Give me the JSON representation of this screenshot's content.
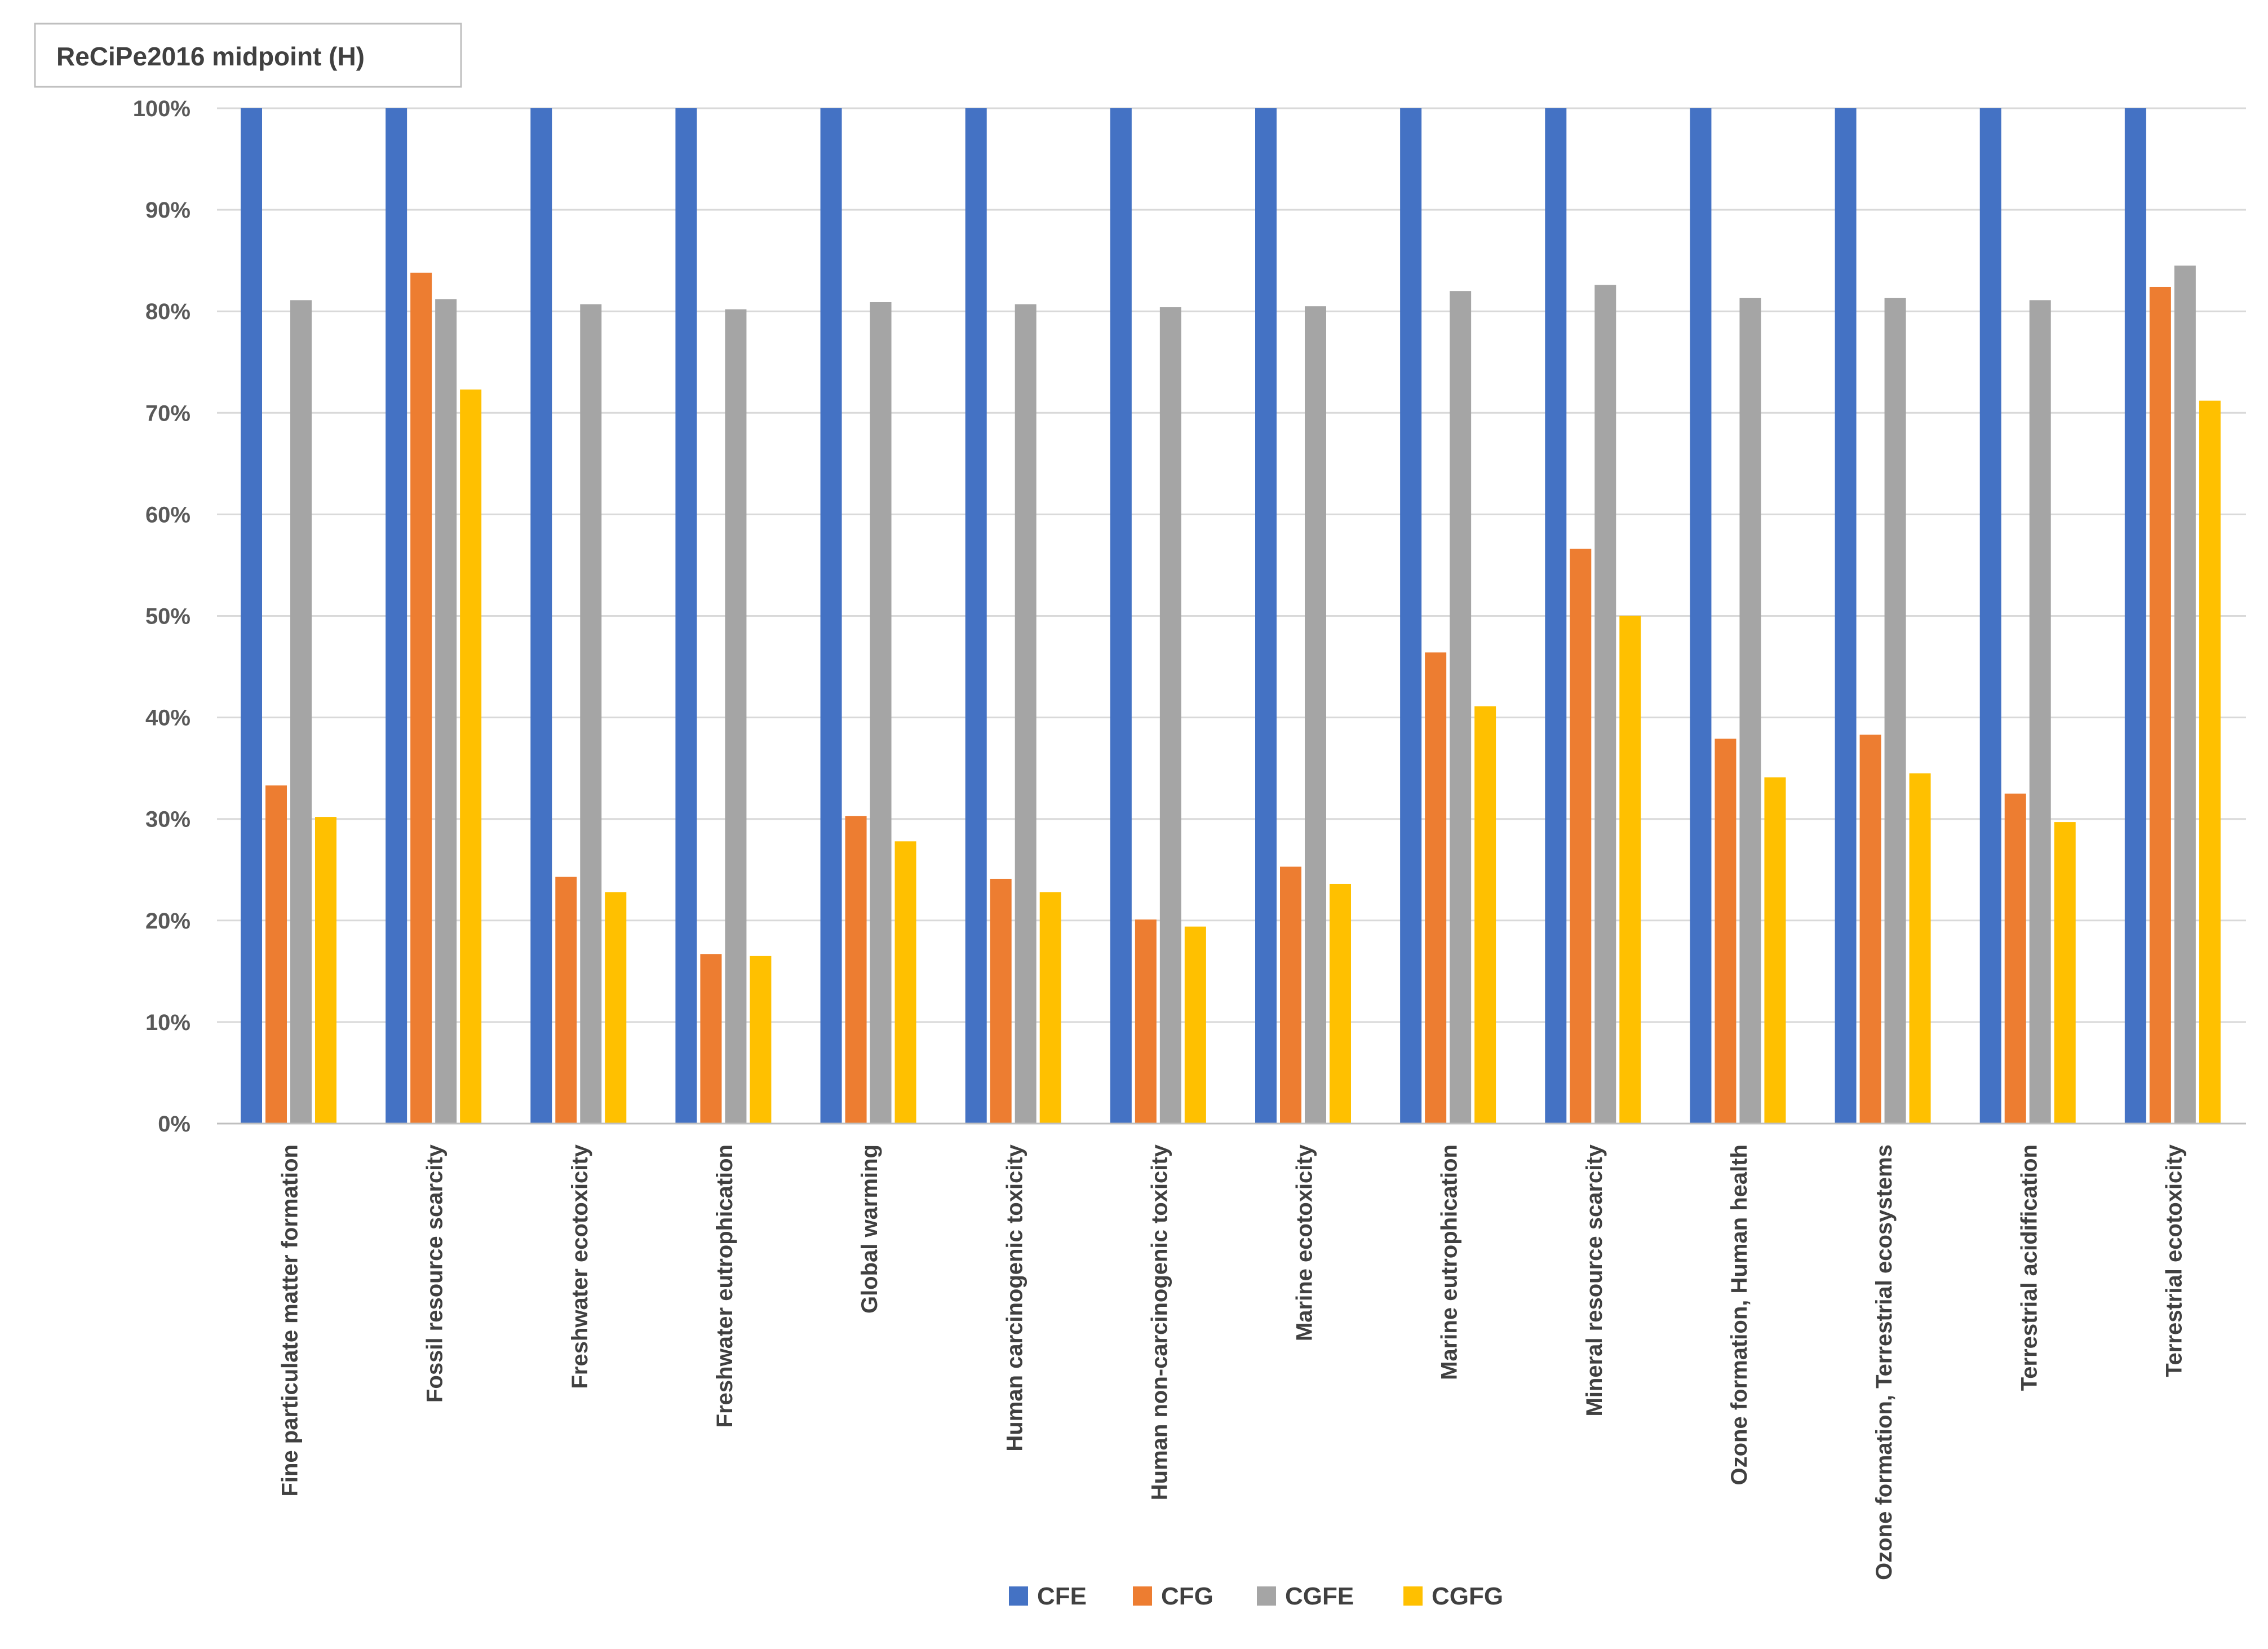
{
  "chart_data": {
    "type": "bar",
    "title": "ReCiPe2016 midpoint (H)",
    "xlabel": "",
    "ylabel": "",
    "ylim": [
      0,
      100
    ],
    "y_ticks": [
      "0%",
      "10%",
      "20%",
      "30%",
      "40%",
      "50%",
      "60%",
      "70%",
      "80%",
      "90%",
      "100%"
    ],
    "y_tick_values": [
      0,
      10,
      20,
      30,
      40,
      50,
      60,
      70,
      80,
      90,
      100
    ],
    "grid": true,
    "legend_position": "bottom",
    "categories": [
      "Fine particulate matter formation",
      "Fossil resource scarcity",
      "Freshwater ecotoxicity",
      "Freshwater eutrophication",
      "Global warming",
      "Human carcinogenic toxicity",
      "Human non-carcinogenic toxicity",
      "Marine ecotoxicity",
      "Marine eutrophication",
      "Mineral resource scarcity",
      "Ozone formation, Human health",
      "Ozone formation, Terrestrial ecosystems",
      "Terrestrial acidification",
      "Terrestrial ecotoxicity"
    ],
    "series": [
      {
        "name": "CFE",
        "color": "#4472C4",
        "values": [
          100,
          100,
          100,
          100,
          100,
          100,
          100,
          100,
          100,
          100,
          100,
          100,
          100,
          100
        ]
      },
      {
        "name": "CFG",
        "color": "#ED7D31",
        "values": [
          33.3,
          83.8,
          24.3,
          16.7,
          30.3,
          24.1,
          20.1,
          25.3,
          46.4,
          56.6,
          37.9,
          38.3,
          32.5,
          82.4
        ]
      },
      {
        "name": "CGFE",
        "color": "#A5A5A5",
        "values": [
          81.1,
          81.2,
          80.7,
          80.2,
          80.9,
          80.7,
          80.4,
          80.5,
          82.0,
          82.6,
          81.3,
          81.3,
          81.1,
          84.5
        ]
      },
      {
        "name": "CGFG",
        "color": "#FFC000",
        "values": [
          30.2,
          72.3,
          22.8,
          16.5,
          27.8,
          22.8,
          19.4,
          23.6,
          41.1,
          50.0,
          34.1,
          34.5,
          29.7,
          71.2
        ]
      }
    ]
  }
}
